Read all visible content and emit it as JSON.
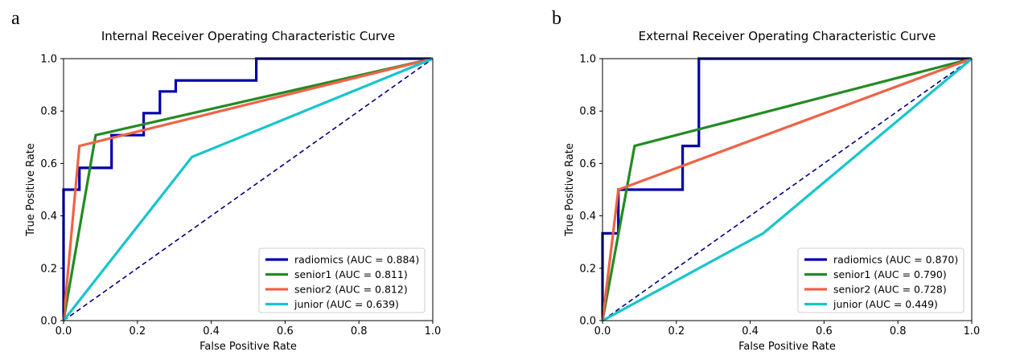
{
  "panels": [
    {
      "letter": "a"
    },
    {
      "letter": "b"
    }
  ],
  "chart_data": [
    {
      "type": "line",
      "title": "Internal Receiver Operating Characteristic Curve",
      "xlabel": "False Positive Rate",
      "ylabel": "True Positive Rate",
      "xlim": [
        0,
        1
      ],
      "ylim": [
        0,
        1
      ],
      "xticks": [
        "0.0",
        "0.2",
        "0.4",
        "0.6",
        "0.8",
        "1.0"
      ],
      "yticks": [
        "0.0",
        "0.2",
        "0.4",
        "0.6",
        "0.8",
        "1.0"
      ],
      "legend_position": "lower-right",
      "diagonal": {
        "x": [
          0,
          1
        ],
        "y": [
          0,
          1
        ],
        "color": "#000080",
        "style": "dashed"
      },
      "series": [
        {
          "name": "radiomics",
          "label": "radiomics (AUC = 0.884)",
          "color": "#0000aa",
          "x": [
            0,
            0,
            0.043,
            0.043,
            0.13,
            0.13,
            0.217,
            0.217,
            0.261,
            0.261,
            0.304,
            0.304,
            0.522,
            0.522,
            1.0
          ],
          "y": [
            0,
            0.5,
            0.5,
            0.583,
            0.583,
            0.708,
            0.708,
            0.792,
            0.792,
            0.875,
            0.875,
            0.917,
            0.917,
            1.0,
            1.0
          ]
        },
        {
          "name": "senior1",
          "label": "senior1 (AUC = 0.811)",
          "color": "#228b22",
          "x": [
            0,
            0.087,
            1.0
          ],
          "y": [
            0,
            0.708,
            1.0
          ]
        },
        {
          "name": "senior2",
          "label": "senior2 (AUC = 0.812)",
          "color": "#ee6347",
          "x": [
            0,
            0.043,
            1.0
          ],
          "y": [
            0,
            0.667,
            1.0
          ]
        },
        {
          "name": "junior",
          "label": "junior (AUC = 0.639)",
          "color": "#17c5cc",
          "x": [
            0,
            0.348,
            1.0
          ],
          "y": [
            0,
            0.625,
            1.0
          ]
        }
      ]
    },
    {
      "type": "line",
      "title": "External Receiver Operating Characteristic Curve",
      "xlabel": "False Positive Rate",
      "ylabel": "True Positive Rate",
      "xlim": [
        0,
        1
      ],
      "ylim": [
        0,
        1
      ],
      "xticks": [
        "0.0",
        "0.2",
        "0.4",
        "0.6",
        "0.8",
        "1.0"
      ],
      "yticks": [
        "0.0",
        "0.2",
        "0.4",
        "0.6",
        "0.8",
        "1.0"
      ],
      "legend_position": "lower-right",
      "diagonal": {
        "x": [
          0,
          1
        ],
        "y": [
          0,
          1
        ],
        "color": "#000080",
        "style": "dashed"
      },
      "series": [
        {
          "name": "radiomics",
          "label": "radiomics (AUC = 0.870)",
          "color": "#0000aa",
          "x": [
            0,
            0,
            0.043,
            0.043,
            0.217,
            0.217,
            0.261,
            0.261,
            1.0
          ],
          "y": [
            0,
            0.333,
            0.333,
            0.5,
            0.5,
            0.667,
            0.667,
            1.0,
            1.0
          ]
        },
        {
          "name": "senior1",
          "label": "senior1 (AUC = 0.790)",
          "color": "#228b22",
          "x": [
            0,
            0.087,
            1.0
          ],
          "y": [
            0,
            0.667,
            1.0
          ]
        },
        {
          "name": "senior2",
          "label": "senior2 (AUC = 0.728)",
          "color": "#ee6347",
          "x": [
            0,
            0.043,
            1.0
          ],
          "y": [
            0,
            0.5,
            1.0
          ]
        },
        {
          "name": "junior",
          "label": "junior (AUC = 0.449)",
          "color": "#17c5cc",
          "x": [
            0,
            0.435,
            1.0
          ],
          "y": [
            0,
            0.333,
            1.0
          ]
        }
      ]
    }
  ]
}
